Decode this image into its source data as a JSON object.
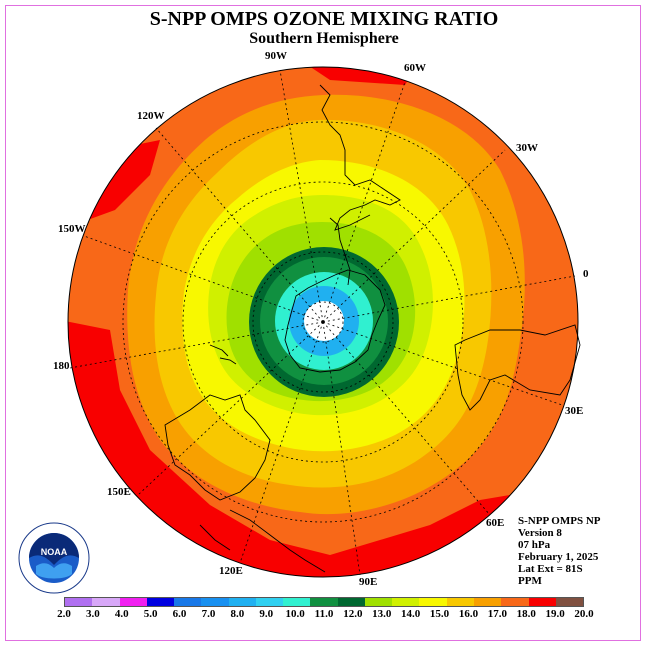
{
  "title": "S-NPP OMPS OZONE MIXING RATIO",
  "subtitle": "Southern Hemisphere",
  "longitude_labels": [
    "90W",
    "60W",
    "30W",
    "0",
    "30E",
    "60E",
    "90E",
    "120E",
    "150E",
    "180",
    "150W",
    "120W"
  ],
  "info": {
    "instrument": "S-NPP OMPS NP",
    "version": "Version 8",
    "pressure": "07 hPa",
    "date": "February 1, 2025",
    "lat_ext": "Lat Ext = 81S",
    "units": "PPM"
  },
  "logo": {
    "text": "NOAA",
    "ring_text": "NATIONAL OCEANIC AND ATMOSPHERIC ADMINISTRATION · U.S. DEPARTMENT OF COMMERCE"
  },
  "colorbar": {
    "labels": [
      "2.0",
      "3.0",
      "4.0",
      "5.0",
      "6.0",
      "7.0",
      "8.0",
      "9.0",
      "10.0",
      "11.0",
      "12.0",
      "13.0",
      "14.0",
      "15.0",
      "16.0",
      "17.0",
      "18.0",
      "19.0",
      "20.0"
    ],
    "colors": [
      "#b070f0",
      "#d8a8f8",
      "#f020f0",
      "#0000e0",
      "#1878e8",
      "#1890f0",
      "#20b0f0",
      "#30d0f0",
      "#30f0d0",
      "#109040",
      "#006830",
      "#a0e000",
      "#d0f000",
      "#f8f800",
      "#f8c800",
      "#f8a000",
      "#f86818",
      "#f80000",
      "#805040"
    ]
  },
  "map": {
    "projection": "south polar stereographic",
    "lat_extent": "81S",
    "contour_levels_ppm": [
      11.0,
      12.0,
      13.0,
      14.0,
      15.0,
      16.0,
      17.0,
      18.0,
      19.0
    ],
    "band_colors": [
      "#ffffff",
      "#20b0f0",
      "#30f0d0",
      "#109040",
      "#006830",
      "#a0e000",
      "#d0f000",
      "#f8f800",
      "#f8c800",
      "#f8a000",
      "#f86818",
      "#f80000"
    ]
  }
}
